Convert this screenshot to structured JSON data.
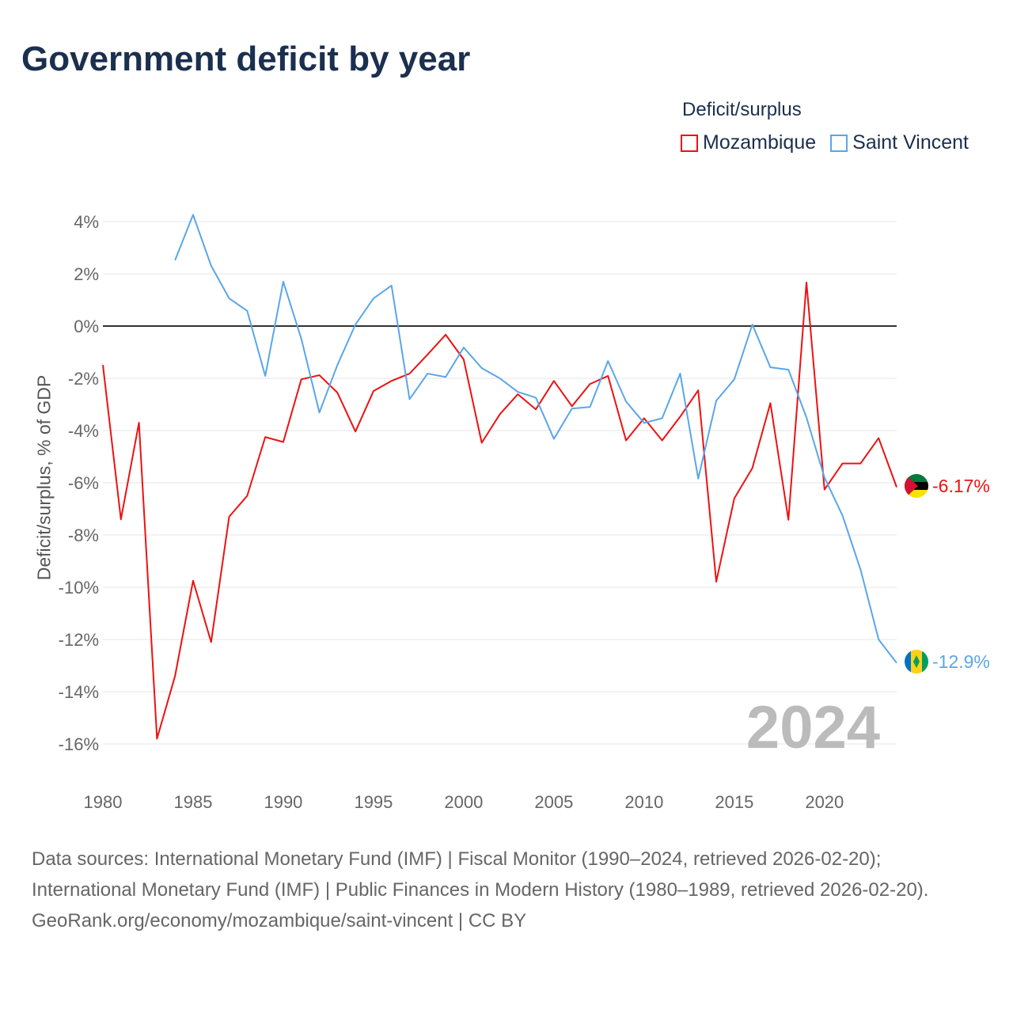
{
  "title": "Government deficit by year",
  "legend": {
    "title": "Deficit/surplus",
    "items": [
      {
        "label": "Mozambique",
        "color": "#ee1111"
      },
      {
        "label": "Saint Vincent",
        "color": "#5aa6ea"
      }
    ]
  },
  "footer": {
    "sources": "Data sources: International Monetary Fund (IMF) | Fiscal Monitor (1990–2024, retrieved 2026-02-20); International Monetary Fund (IMF) | Public Finances in Modern History (1980–1989, retrieved 2026-02-20).",
    "link": "GeoRank.org/economy/mozambique/saint-vincent | CC BY"
  },
  "chart_data": {
    "type": "line",
    "title": "Government deficit by year",
    "xlabel": "",
    "ylabel": "Deficit/surplus, % of GDP",
    "xlim": [
      1980,
      2024
    ],
    "ylim": [
      -16,
      4
    ],
    "xticks": [
      1980,
      1985,
      1990,
      1995,
      2000,
      2005,
      2010,
      2015,
      2020
    ],
    "yticks": [
      4,
      2,
      0,
      -2,
      -4,
      -6,
      -8,
      -10,
      -12,
      -14,
      -16
    ],
    "ytick_labels": [
      "4%",
      "2%",
      "0%",
      "-2%",
      "-4%",
      "-6%",
      "-8%",
      "-10%",
      "-12%",
      "-14%",
      "-16%"
    ],
    "year_watermark": "2024",
    "series": [
      {
        "name": "Mozambique",
        "color": "#ee1111",
        "start": 1980,
        "end_label": "-6.17%",
        "values": [
          -1.49,
          -7.4,
          -3.7,
          -15.8,
          -13.4,
          -9.75,
          -12.1,
          -7.3,
          -6.5,
          -4.25,
          -4.44,
          -2.04,
          -1.88,
          -2.55,
          -4.04,
          -2.49,
          -2.1,
          -1.82,
          -1.09,
          -0.33,
          -1.28,
          -4.47,
          -3.38,
          -2.61,
          -3.19,
          -2.1,
          -3.07,
          -2.22,
          -1.91,
          -4.38,
          -3.53,
          -4.38,
          -3.47,
          -2.46,
          -9.79,
          -6.6,
          -5.44,
          -2.95,
          -7.42,
          1.67,
          -6.26,
          -5.26,
          -5.26,
          -4.29,
          -6.17
        ]
      },
      {
        "name": "Saint Vincent",
        "color": "#5aa6ea",
        "start": 1984,
        "end_label": "-12.9%",
        "values": [
          2.52,
          4.26,
          2.31,
          1.06,
          0.58,
          -1.91,
          1.7,
          -0.49,
          -3.31,
          -1.49,
          0.06,
          1.06,
          1.55,
          -2.8,
          -1.82,
          -1.95,
          -0.82,
          -1.61,
          -2.0,
          -2.52,
          -2.74,
          -4.32,
          -3.16,
          -3.1,
          -1.34,
          -2.89,
          -3.71,
          -3.53,
          -1.82,
          -5.84,
          -2.86,
          -2.04,
          0.06,
          -1.58,
          -1.67,
          -3.5,
          -5.8,
          -7.26,
          -9.33,
          -12.0,
          -12.9
        ]
      }
    ]
  }
}
